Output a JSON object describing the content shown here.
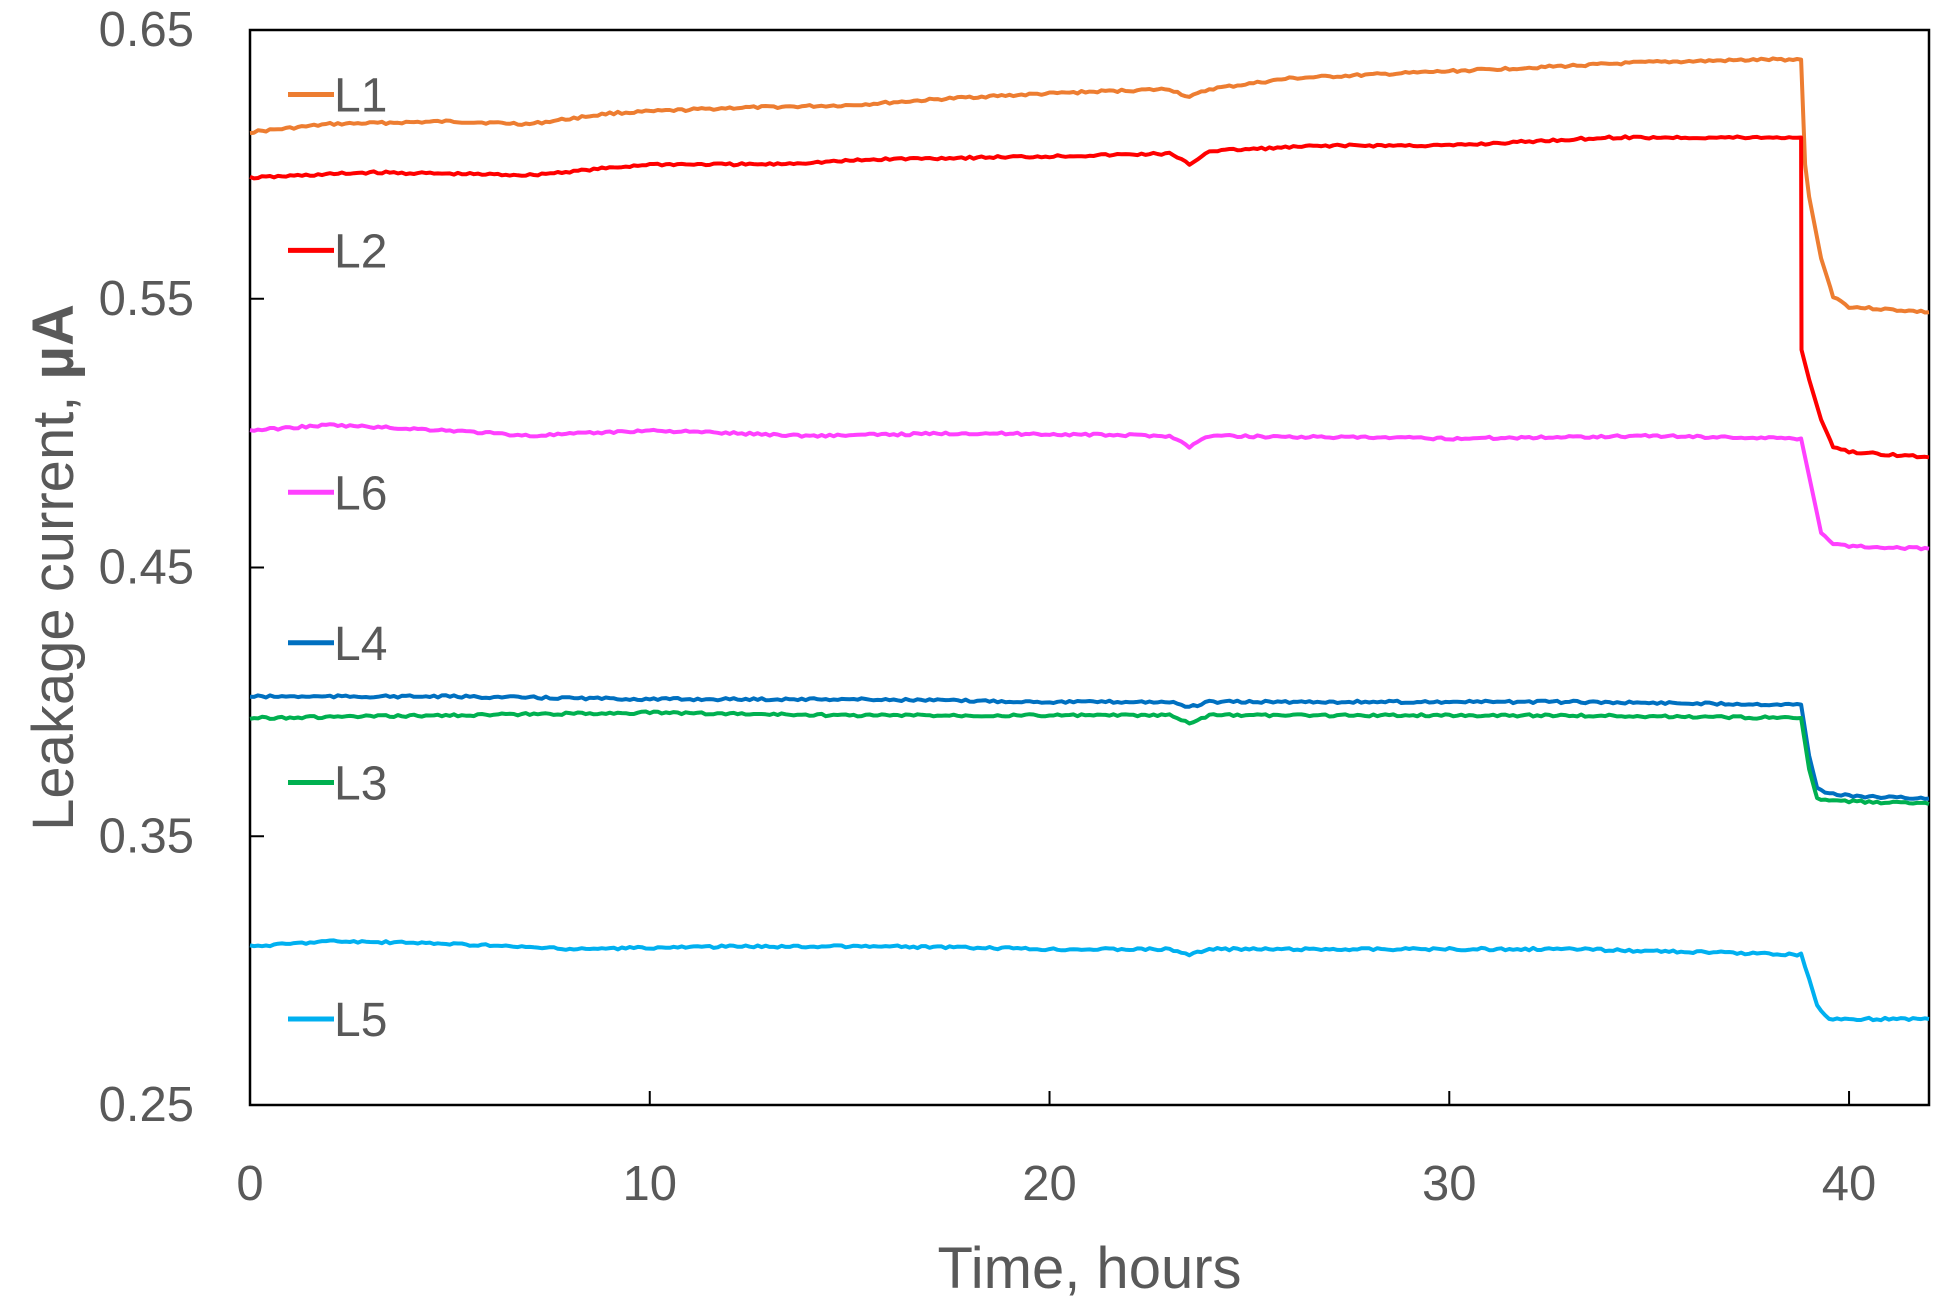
{
  "chart_data": {
    "type": "line",
    "title": "",
    "xlabel": "Time, hours",
    "ylabel_main": "Leakage current, ",
    "ylabel_unit": "µA",
    "xlim": [
      0,
      42
    ],
    "ylim": [
      0.25,
      0.65
    ],
    "x_ticks": [
      0,
      10,
      20,
      30,
      40
    ],
    "y_ticks": [
      0.25,
      0.35,
      0.45,
      0.55,
      0.65
    ],
    "x_tick_labels": [
      "0",
      "10",
      "20",
      "30",
      "40"
    ],
    "y_tick_labels": [
      "0.25",
      "0.35",
      "0.45",
      "0.55",
      "0.65"
    ],
    "grid": false,
    "legend_position": "inside-left",
    "series": [
      {
        "name": "L1",
        "color": "#ED7D31",
        "x": [
          0,
          2,
          5,
          7,
          9,
          12,
          15,
          18,
          21,
          23,
          23.5,
          24,
          26,
          29,
          32,
          35,
          38,
          38.8,
          38.9,
          39.0,
          39.3,
          39.6,
          40,
          42
        ],
        "y": [
          0.612,
          0.615,
          0.616,
          0.615,
          0.619,
          0.621,
          0.622,
          0.625,
          0.627,
          0.628,
          0.625,
          0.628,
          0.632,
          0.634,
          0.636,
          0.638,
          0.639,
          0.639,
          0.6,
          0.588,
          0.565,
          0.551,
          0.547,
          0.545
        ],
        "legend_value": 0.626
      },
      {
        "name": "L2",
        "color": "#FF0000",
        "x": [
          0,
          3,
          7,
          10,
          13,
          16,
          20,
          23,
          23.5,
          24,
          27,
          30,
          34,
          38,
          38.8,
          38.81,
          39.0,
          39.3,
          39.6,
          40,
          42
        ],
        "y": [
          0.595,
          0.597,
          0.596,
          0.6,
          0.6,
          0.602,
          0.603,
          0.604,
          0.6,
          0.605,
          0.607,
          0.607,
          0.61,
          0.61,
          0.61,
          0.531,
          0.52,
          0.505,
          0.495,
          0.493,
          0.491
        ],
        "legend_value": 0.568
      },
      {
        "name": "L6",
        "color": "#FF40FF",
        "x": [
          0,
          2,
          5,
          7,
          10,
          14,
          18,
          23,
          23.5,
          24,
          30,
          35,
          38.8,
          39.0,
          39.3,
          39.6,
          40,
          42
        ],
        "y": [
          0.501,
          0.503,
          0.501,
          0.499,
          0.501,
          0.499,
          0.5,
          0.499,
          0.495,
          0.499,
          0.498,
          0.499,
          0.498,
          0.484,
          0.463,
          0.459,
          0.458,
          0.457
        ],
        "legend_value": 0.478
      },
      {
        "name": "L4",
        "color": "#0070C0",
        "x": [
          0,
          5,
          10,
          15,
          20,
          23,
          23.5,
          24,
          28,
          33,
          38.8,
          39.0,
          39.2,
          39.5,
          40,
          42
        ],
        "y": [
          0.402,
          0.402,
          0.401,
          0.401,
          0.4,
          0.4,
          0.398,
          0.4,
          0.4,
          0.4,
          0.399,
          0.38,
          0.368,
          0.366,
          0.365,
          0.364
        ],
        "legend_value": 0.422
      },
      {
        "name": "L3",
        "color": "#00B050",
        "x": [
          0,
          5,
          10,
          15,
          20,
          23,
          23.5,
          24,
          28,
          33,
          38.8,
          39.0,
          39.2,
          39.5,
          40,
          42
        ],
        "y": [
          0.394,
          0.395,
          0.396,
          0.395,
          0.395,
          0.395,
          0.392,
          0.395,
          0.395,
          0.395,
          0.394,
          0.375,
          0.364,
          0.363,
          0.363,
          0.362
        ],
        "legend_value": 0.37
      },
      {
        "name": "L5",
        "color": "#00B0F0",
        "x": [
          0,
          2,
          5,
          8,
          12,
          16,
          20,
          23,
          23.5,
          24,
          28,
          33,
          38.8,
          39.0,
          39.2,
          39.5,
          40,
          42
        ],
        "y": [
          0.309,
          0.311,
          0.31,
          0.308,
          0.309,
          0.309,
          0.308,
          0.308,
          0.306,
          0.308,
          0.308,
          0.308,
          0.306,
          0.297,
          0.287,
          0.282,
          0.282,
          0.282
        ],
        "legend_value": 0.282
      }
    ]
  }
}
